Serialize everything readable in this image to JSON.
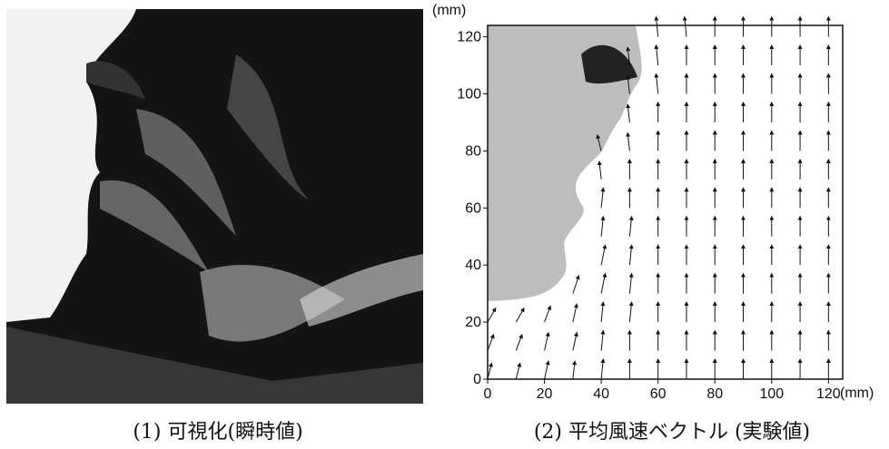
{
  "caption_left": "(1) 可視化(瞬時値)",
  "caption_right": "(2) 平均風速ベクトル (実験値)",
  "chart_data": {
    "type": "quiver",
    "x_unit": "(mm)",
    "y_unit": "(mm)",
    "xlim": [
      0,
      125
    ],
    "ylim": [
      0,
      124
    ],
    "xticks": [
      0,
      20,
      40,
      60,
      80,
      100,
      120
    ],
    "yticks": [
      0,
      20,
      40,
      60,
      80,
      100,
      120
    ],
    "x": [
      0,
      10,
      20,
      30,
      40,
      50,
      60,
      70,
      80,
      90,
      100,
      110,
      120
    ],
    "y": [
      0,
      10,
      20,
      30,
      40,
      50,
      60,
      70,
      80,
      90,
      100,
      110,
      120
    ],
    "u": [
      [
        0.2,
        0.2,
        0.2,
        0.1,
        0.1,
        0,
        0,
        0,
        0,
        0,
        0,
        0,
        0
      ],
      [
        0.3,
        0.3,
        0.2,
        0.2,
        0.1,
        0,
        0,
        0,
        0,
        0,
        0,
        0,
        0
      ],
      [
        0.4,
        0.4,
        0.3,
        0.2,
        0.1,
        0.1,
        0,
        0,
        0,
        0,
        0,
        0,
        0
      ],
      [
        null,
        null,
        null,
        0.3,
        0.2,
        0.1,
        0,
        0,
        0,
        0,
        0,
        0,
        0
      ],
      [
        null,
        null,
        null,
        null,
        0.2,
        0.1,
        0,
        0,
        0,
        0,
        0,
        0,
        0
      ],
      [
        null,
        null,
        null,
        null,
        0.1,
        0.1,
        0,
        0,
        0,
        0,
        0,
        0,
        0
      ],
      [
        null,
        null,
        null,
        null,
        0.1,
        0,
        0,
        0,
        0,
        0,
        0,
        0,
        0
      ],
      [
        null,
        null,
        null,
        null,
        -0.1,
        0,
        0,
        0,
        0,
        0,
        0,
        0,
        0
      ],
      [
        null,
        null,
        null,
        null,
        -0.2,
        -0.1,
        0,
        0,
        0,
        0,
        0,
        0,
        0
      ],
      [
        null,
        null,
        null,
        null,
        null,
        -0.1,
        0,
        0,
        0,
        0,
        0,
        0,
        0
      ],
      [
        null,
        null,
        null,
        null,
        null,
        -0.1,
        -0.1,
        0,
        0,
        0,
        0,
        0,
        0
      ],
      [
        null,
        null,
        null,
        null,
        null,
        -0.1,
        -0.1,
        0,
        0,
        0,
        0,
        0,
        0
      ],
      [
        null,
        null,
        null,
        null,
        null,
        null,
        -0.1,
        -0.1,
        0,
        0,
        0,
        0,
        0
      ]
    ],
    "v": [
      [
        0.8,
        0.8,
        0.9,
        0.9,
        1,
        1,
        1,
        1,
        1,
        1,
        1,
        1,
        1
      ],
      [
        0.8,
        0.8,
        0.9,
        0.9,
        1,
        1,
        1,
        1,
        1,
        1,
        1,
        1,
        1
      ],
      [
        0.7,
        0.7,
        0.8,
        0.9,
        1,
        1,
        1,
        1,
        1,
        1,
        1,
        1,
        1
      ],
      [
        null,
        null,
        null,
        0.9,
        1,
        1,
        1,
        1,
        1,
        1,
        1,
        1,
        1
      ],
      [
        null,
        null,
        null,
        null,
        1,
        1,
        1,
        1,
        1,
        1,
        1,
        1,
        1
      ],
      [
        null,
        null,
        null,
        null,
        1,
        1,
        1,
        1,
        1,
        1,
        1,
        1,
        1
      ],
      [
        null,
        null,
        null,
        null,
        1,
        1,
        1,
        1,
        1,
        1,
        1,
        1,
        1
      ],
      [
        null,
        null,
        null,
        null,
        0.9,
        1,
        1,
        1,
        1,
        1,
        1,
        1,
        1
      ],
      [
        null,
        null,
        null,
        null,
        0.8,
        0.9,
        1,
        1,
        1,
        1,
        1,
        1,
        1
      ],
      [
        null,
        null,
        null,
        null,
        null,
        0.9,
        1,
        1,
        1,
        1,
        1,
        1,
        1
      ],
      [
        null,
        null,
        null,
        null,
        null,
        0.9,
        1,
        1,
        1,
        1,
        1,
        1,
        1
      ],
      [
        null,
        null,
        null,
        null,
        null,
        0.9,
        1,
        1,
        1,
        1,
        1,
        1,
        1
      ],
      [
        null,
        null,
        null,
        null,
        null,
        null,
        1,
        1,
        1,
        1,
        1,
        1,
        1
      ]
    ]
  }
}
